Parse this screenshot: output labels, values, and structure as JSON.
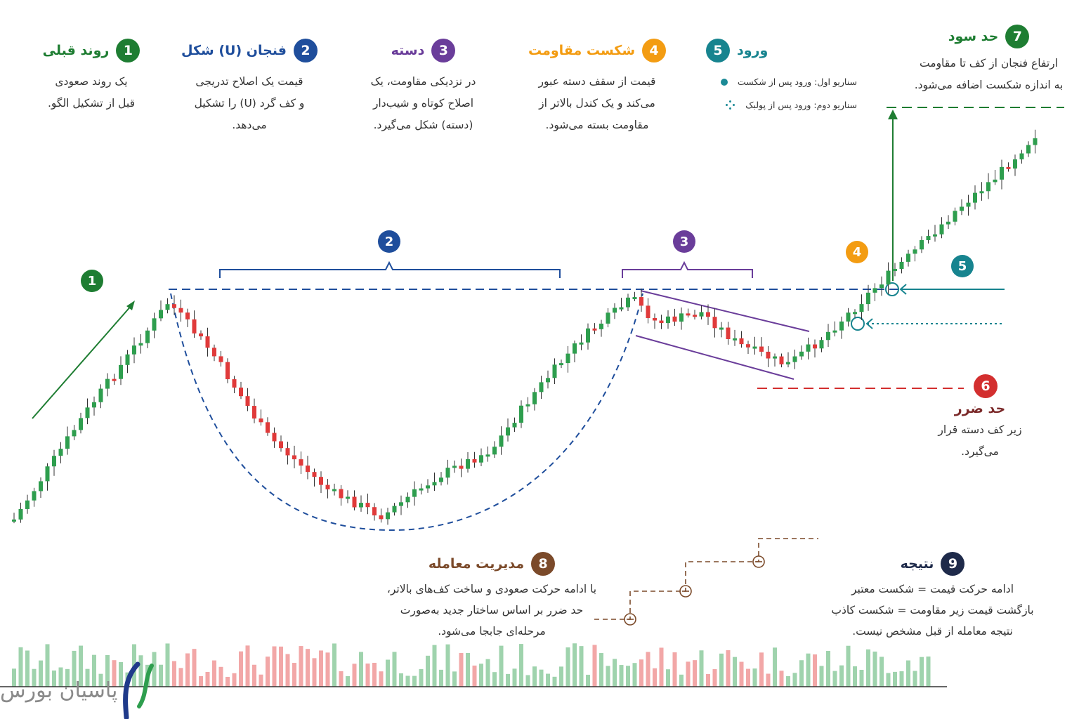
{
  "colors": {
    "green": "#1e7d32",
    "blue": "#1f4e9c",
    "purple": "#6a3d9a",
    "orange": "#f39c12",
    "teal": "#17848f",
    "red": "#d32f2f",
    "brown": "#7b4a2a",
    "navy": "#1e2a4a",
    "candle_up": "#2e9e4e",
    "candle_down": "#e03a3a"
  },
  "sections": {
    "s1": {
      "num": "1",
      "title": "روند قبلی",
      "lines": [
        "یک روند صعودی",
        "قبل از تشکیل الگو."
      ]
    },
    "s2": {
      "num": "2",
      "title": "فنجان (U) شکل",
      "lines": [
        "قیمت یک اصلاح تدریجی",
        "و کف گرد (U) را تشکیل",
        "می‌دهد."
      ]
    },
    "s3": {
      "num": "3",
      "title": "دسته",
      "lines": [
        "در نزدیکی مقاومت، یک",
        "اصلاح کوتاه و شیب‌دار",
        "(دسته) شکل می‌گیرد."
      ]
    },
    "s4": {
      "num": "4",
      "title": "شکست مقاومت",
      "lines": [
        "قیمت از سقف دسته عبور",
        "می‌کند و یک کندل بالاتر از",
        "مقاومت بسته می‌شود."
      ]
    },
    "s5": {
      "num": "5",
      "title": "ورود",
      "legend": [
        "سناریو اول: ورود پس از شکست",
        "سناریو دوم: ورود پس از پولبک"
      ]
    },
    "s6": {
      "num": "6",
      "title": "حد ضرر",
      "lines": [
        "زیر کف دسته قرار",
        "می‌گیرد."
      ]
    },
    "s7": {
      "num": "7",
      "title": "حد سود",
      "lines": [
        "ارتفاع فنجان از کف تا مقاومت",
        "به اندازه شکست اضافه می‌شود."
      ]
    },
    "s8": {
      "num": "8",
      "title": "مدیریت معامله",
      "lines": [
        "با ادامه حرکت صعودی و ساخت کف‌های بالاتر،",
        "حد ضرر بر اساس ساختار جدید به‌صورت",
        "مرحله‌ای جابجا می‌شود."
      ]
    },
    "s9": {
      "num": "9",
      "title": "نتیجه",
      "lines": [
        "ادامه حرکت قیمت = شکست معتبر",
        "بازگشت قیمت زیر مقاومت = شکست کاذب",
        "نتیجه معامله از قبل مشخص نیست."
      ]
    }
  },
  "chart_markers": {
    "m1": "1",
    "m2": "2",
    "m3": "3",
    "m4": "4",
    "m5": "5"
  },
  "logo": {
    "text": "پاسیان بورس"
  }
}
